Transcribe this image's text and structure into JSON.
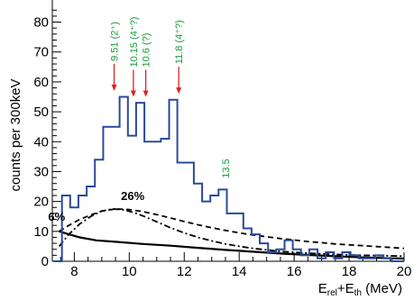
{
  "chart_data": {
    "type": "line",
    "title": "",
    "xlabel": "E_rel+E_th (MeV)",
    "xlabel_parts": {
      "base1": "E",
      "sub1": "rel",
      "plus": "+E",
      "sub2": "th",
      "unit": " (MeV)"
    },
    "ylabel": "counts per 300keV",
    "xlim": [
      7.2,
      20
    ],
    "ylim": [
      0,
      88
    ],
    "xticks": [
      8,
      10,
      12,
      14,
      16,
      18,
      20
    ],
    "xtick_labels": [
      "8",
      "10",
      "12",
      "14",
      "16",
      "18",
      "20"
    ],
    "yticks": [
      0,
      10,
      20,
      30,
      40,
      50,
      60,
      70,
      80
    ],
    "ytick_labels": [
      "0",
      "10",
      "20",
      "30",
      "40",
      "50",
      "60",
      "70",
      "80"
    ],
    "grid": false,
    "histogram": {
      "name": "",
      "color": "#2a4a9a",
      "bin_edges": [
        7.25,
        7.55,
        7.85,
        8.15,
        8.45,
        8.75,
        9.05,
        9.35,
        9.65,
        9.95,
        10.25,
        10.55,
        10.85,
        11.15,
        11.45,
        11.75,
        12.05,
        12.35,
        12.65,
        12.95,
        13.25,
        13.55,
        13.85,
        14.15,
        14.45,
        14.75,
        15.05,
        15.35,
        15.65,
        15.95,
        16.25,
        16.55,
        16.85,
        17.15,
        17.45,
        17.75,
        18.05,
        18.35,
        18.65,
        18.95,
        19.25,
        19.55,
        19.85,
        20.0
      ],
      "counts": [
        0,
        22,
        18,
        22,
        25,
        34,
        45,
        45,
        55,
        42,
        53,
        40,
        40,
        41,
        54,
        33,
        33,
        26,
        20,
        22,
        24,
        16,
        16,
        11,
        9,
        6,
        3,
        4,
        7,
        4,
        2,
        4,
        1,
        3,
        1,
        3,
        2,
        1,
        1,
        2,
        1,
        0,
        0
      ]
    },
    "curves": [
      {
        "style": "solid",
        "color": "#000000",
        "x": [
          7.45,
          7.8,
          8.2,
          8.8,
          9.5,
          10.5,
          11.5,
          12.5,
          13.5,
          14.5,
          15.5,
          16.5,
          17.5,
          18.5,
          19.5,
          20.0
        ],
        "y": [
          10,
          9,
          8,
          7,
          6.5,
          5.8,
          5.2,
          4.5,
          3.8,
          3.2,
          2.6,
          2.1,
          1.7,
          1.3,
          1.0,
          0.9
        ]
      },
      {
        "style": "dashed",
        "color": "#000000",
        "x": [
          7.45,
          7.8,
          8.2,
          8.6,
          9.0,
          9.5,
          10.0,
          10.5,
          11.0,
          11.5,
          12.0,
          12.5,
          13.0,
          13.5,
          14.0,
          14.5,
          15.0,
          15.5,
          16.0,
          16.5,
          17.0,
          17.5,
          18.0,
          18.5,
          19.0,
          19.5,
          20.0
        ],
        "y": [
          10,
          12,
          14,
          15.5,
          16.8,
          17.5,
          17.3,
          16.6,
          15.6,
          14.5,
          13.3,
          12.2,
          11.2,
          10.3,
          9.5,
          8.8,
          8.2,
          7.6,
          7.1,
          6.6,
          6.2,
          5.8,
          5.5,
          5.2,
          4.9,
          4.6,
          4.3
        ]
      },
      {
        "style": "dash-dot",
        "color": "#000000",
        "x": [
          7.45,
          7.8,
          8.2,
          8.6,
          9.0,
          9.4,
          9.8,
          10.2,
          10.6,
          11.0,
          11.5,
          12.0,
          12.5,
          13.0,
          13.5,
          14.0,
          14.5,
          15.0,
          15.5,
          16.0,
          16.5,
          17.0,
          17.5,
          18.0,
          18.5,
          19.0,
          19.5,
          20.0
        ],
        "y": [
          5,
          9,
          12.5,
          15,
          16.8,
          17.5,
          17.2,
          16.2,
          14.8,
          13.2,
          11.2,
          9.5,
          8.0,
          6.8,
          5.8,
          5.0,
          4.3,
          3.8,
          3.3,
          3.0,
          2.7,
          2.5,
          2.3,
          2.1,
          2.0,
          1.9,
          1.8,
          1.7
        ]
      }
    ],
    "percent_labels": [
      {
        "text": "26%",
        "x": 9.7,
        "y": 20.5
      },
      {
        "text": "6%",
        "x": 7.05,
        "y": 13.5
      }
    ],
    "annotations": [
      {
        "text": "9.51 (2⁺)",
        "x": 9.45,
        "color": "#1a9a3a",
        "arrow_color": "#e02020",
        "arrow_tip_y": 57
      },
      {
        "text": "10.15 (4⁺?)",
        "x": 10.15,
        "color": "#1a9a3a",
        "arrow_color": "#e02020",
        "arrow_tip_y": 55
      },
      {
        "text": "10.6 (?)",
        "x": 10.6,
        "color": "#1a9a3a",
        "arrow_color": "#e02020",
        "arrow_tip_y": 55
      },
      {
        "text": "11.8 (4⁺?)",
        "x": 11.8,
        "color": "#1a9a3a",
        "arrow_color": "#e02020",
        "arrow_tip_y": 56
      },
      {
        "text": "13.5",
        "x": 13.5,
        "color": "#1a9a3a",
        "arrow_color": "",
        "arrow_tip_y": 26
      }
    ]
  }
}
